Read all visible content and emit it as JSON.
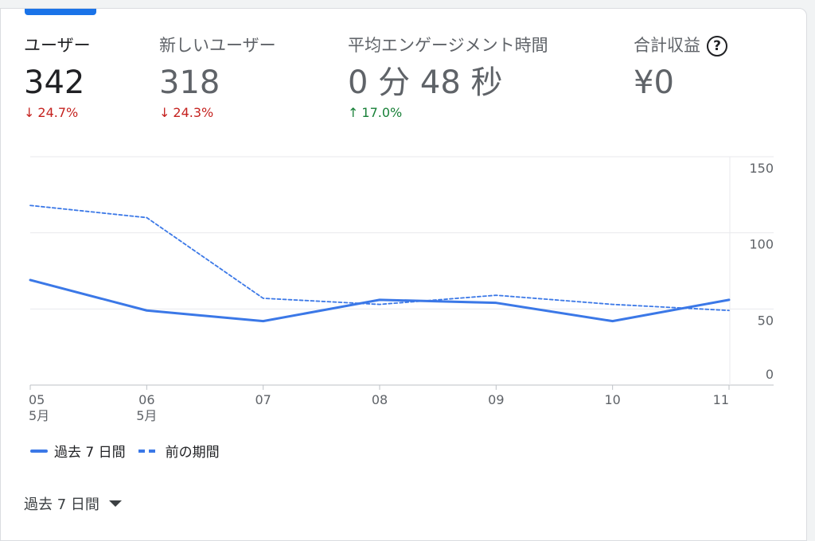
{
  "metrics": [
    {
      "label": "ユーザー",
      "value": "342",
      "delta": "24.7%",
      "arrow": "↓",
      "trend": "down"
    },
    {
      "label": "新しいユーザー",
      "value": "318",
      "delta": "24.3%",
      "arrow": "↓",
      "trend": "down"
    },
    {
      "label": "平均エンゲージメント時間",
      "value": "0 分 48 秒",
      "delta": "17.0%",
      "arrow": "↑",
      "trend": "up"
    },
    {
      "label": "合計収益",
      "value": "¥0",
      "help_icon": "?"
    }
  ],
  "chart_data": {
    "type": "line",
    "categories": [
      "05",
      "06",
      "07",
      "08",
      "09",
      "10",
      "11"
    ],
    "category_sublabels": [
      "5月",
      "5月",
      "",
      "",
      "",
      "",
      ""
    ],
    "y_ticks": [
      0,
      50,
      100,
      150
    ],
    "ylim": [
      0,
      150
    ],
    "grid": true,
    "y_axis_side": "right",
    "series": [
      {
        "name": "過去 7 日間",
        "style": "solid",
        "color": "#3b78e7",
        "values": [
          69,
          49,
          42,
          56,
          54,
          42,
          56
        ]
      },
      {
        "name": "前の期間",
        "style": "dashed",
        "color": "#3b78e7",
        "values": [
          118,
          110,
          57,
          53,
          59,
          53,
          49
        ]
      }
    ]
  },
  "legend": {
    "current": "過去 7 日間",
    "previous": "前の期間"
  },
  "footer": {
    "period_label": "過去 7 日間"
  },
  "colors": {
    "accent": "#1a73e8",
    "line": "#3b78e7",
    "down": "#c5221f",
    "up": "#188038"
  }
}
